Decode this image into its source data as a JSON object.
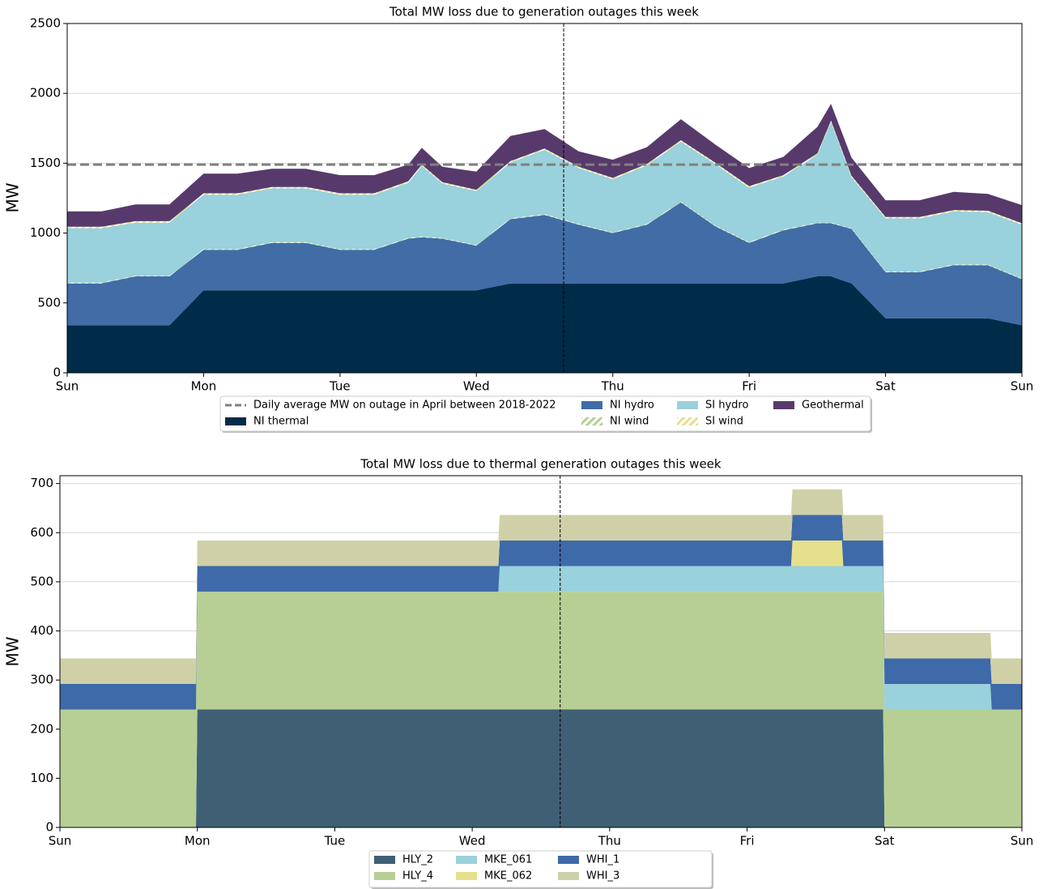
{
  "chart_data": [
    {
      "type": "stacked_area",
      "title": "Total MW loss due to generation outages this week",
      "ylabel": "MW",
      "x": [
        0,
        0.25,
        0.5,
        0.75,
        1,
        1.25,
        1.5,
        1.75,
        2,
        2.25,
        2.5,
        2.6,
        2.75,
        3,
        3.25,
        3.5,
        3.75,
        4,
        4.25,
        4.5,
        4.75,
        5,
        5.25,
        5.5,
        5.6,
        5.75,
        6,
        6.25,
        6.5,
        6.75,
        7
      ],
      "xlim": [
        0,
        7
      ],
      "xticks": [
        {
          "value": 0,
          "label": "Sun"
        },
        {
          "value": 1,
          "label": "Mon"
        },
        {
          "value": 2,
          "label": "Tue"
        },
        {
          "value": 3,
          "label": "Wed"
        },
        {
          "value": 4,
          "label": "Thu"
        },
        {
          "value": 5,
          "label": "Fri"
        },
        {
          "value": 6,
          "label": "Sat"
        },
        {
          "value": 7,
          "label": "Sun"
        }
      ],
      "ylim": [
        0,
        2500
      ],
      "yticks": [
        0,
        500,
        1000,
        1500,
        2000,
        2500
      ],
      "grid": "y",
      "vline": 3.64,
      "avg_line": {
        "label": "Daily average MW on outage in April between 2018-2022",
        "value": 1490,
        "color": "#808080"
      },
      "series": [
        {
          "name": "NI thermal",
          "color": "#002b49",
          "values": [
            340,
            340,
            340,
            340,
            590,
            590,
            590,
            590,
            590,
            590,
            590,
            590,
            590,
            590,
            640,
            640,
            640,
            640,
            640,
            640,
            640,
            640,
            640,
            690,
            690,
            640,
            390,
            390,
            390,
            390,
            340
          ]
        },
        {
          "name": "NI hydro",
          "color": "#416ca6",
          "values": [
            300,
            300,
            350,
            350,
            290,
            290,
            340,
            340,
            290,
            290,
            370,
            380,
            370,
            320,
            460,
            490,
            420,
            360,
            420,
            580,
            410,
            290,
            380,
            380,
            380,
            390,
            330,
            330,
            380,
            380,
            330
          ]
        },
        {
          "name": "NI wind",
          "color": "#b5cf94",
          "hatch": true,
          "values": [
            5,
            5,
            5,
            5,
            5,
            5,
            5,
            5,
            5,
            5,
            5,
            5,
            5,
            5,
            5,
            5,
            5,
            5,
            5,
            5,
            5,
            5,
            5,
            5,
            5,
            5,
            5,
            5,
            5,
            5,
            5
          ]
        },
        {
          "name": "SI hydro",
          "color": "#99d1dc",
          "values": [
            390,
            390,
            380,
            380,
            390,
            390,
            385,
            385,
            390,
            390,
            395,
            505,
            390,
            385,
            400,
            460,
            400,
            380,
            420,
            430,
            440,
            390,
            380,
            485,
            720,
            365,
            380,
            380,
            380,
            375,
            385
          ]
        },
        {
          "name": "SI wind",
          "color": "#e6e08c",
          "hatch": true,
          "values": [
            10,
            10,
            10,
            10,
            10,
            10,
            10,
            10,
            10,
            10,
            10,
            10,
            10,
            10,
            10,
            10,
            10,
            10,
            10,
            10,
            10,
            10,
            10,
            10,
            10,
            10,
            10,
            10,
            10,
            10,
            10
          ]
        },
        {
          "name": "Geothermal",
          "color": "#573a6b",
          "values": [
            110,
            110,
            120,
            120,
            140,
            140,
            130,
            130,
            130,
            130,
            120,
            120,
            110,
            130,
            180,
            140,
            110,
            130,
            120,
            150,
            130,
            130,
            130,
            190,
            120,
            130,
            120,
            120,
            130,
            120,
            130
          ]
        }
      ]
    },
    {
      "type": "stacked_area",
      "title": "Total MW loss due to thermal generation outages this week",
      "ylabel": "MW",
      "x": [
        0,
        0.99,
        1,
        3.19,
        3.2,
        5.32,
        5.33,
        5.69,
        5.7,
        5.99,
        6,
        6.77,
        6.78,
        7
      ],
      "xlim": [
        0,
        7
      ],
      "xticks": [
        {
          "value": 0,
          "label": "Sun"
        },
        {
          "value": 1,
          "label": "Mon"
        },
        {
          "value": 2,
          "label": "Tue"
        },
        {
          "value": 3,
          "label": "Wed"
        },
        {
          "value": 4,
          "label": "Thu"
        },
        {
          "value": 5,
          "label": "Fri"
        },
        {
          "value": 6,
          "label": "Sat"
        },
        {
          "value": 7,
          "label": "Sun"
        }
      ],
      "ylim": [
        0,
        716
      ],
      "yticks": [
        0,
        100,
        200,
        300,
        400,
        500,
        600,
        700
      ],
      "grid": "y",
      "vline": 3.64,
      "series": [
        {
          "name": "HLY_2",
          "color": "#3f5f75",
          "values": [
            0,
            0,
            240,
            240,
            240,
            240,
            240,
            240,
            240,
            240,
            0,
            0,
            0,
            0
          ]
        },
        {
          "name": "HLY_4",
          "color": "#b7cf94",
          "values": [
            240,
            240,
            240,
            240,
            240,
            240,
            240,
            240,
            240,
            240,
            240,
            240,
            240,
            240
          ]
        },
        {
          "name": "MKE_061",
          "color": "#99d1dc",
          "values": [
            0,
            0,
            0,
            0,
            52,
            52,
            52,
            52,
            52,
            52,
            52,
            52,
            0,
            0
          ]
        },
        {
          "name": "MKE_062",
          "color": "#e6e08c",
          "values": [
            0,
            0,
            0,
            0,
            0,
            0,
            52,
            52,
            0,
            0,
            0,
            0,
            0,
            0
          ]
        },
        {
          "name": "WHI_1",
          "color": "#3e6aa9",
          "values": [
            52,
            52,
            52,
            52,
            52,
            52,
            52,
            52,
            52,
            52,
            52,
            52,
            52,
            52
          ]
        },
        {
          "name": "WHI_3",
          "color": "#d0d0a8",
          "values": [
            52,
            52,
            52,
            52,
            52,
            52,
            52,
            52,
            52,
            52,
            52,
            52,
            52,
            52
          ]
        }
      ]
    }
  ]
}
